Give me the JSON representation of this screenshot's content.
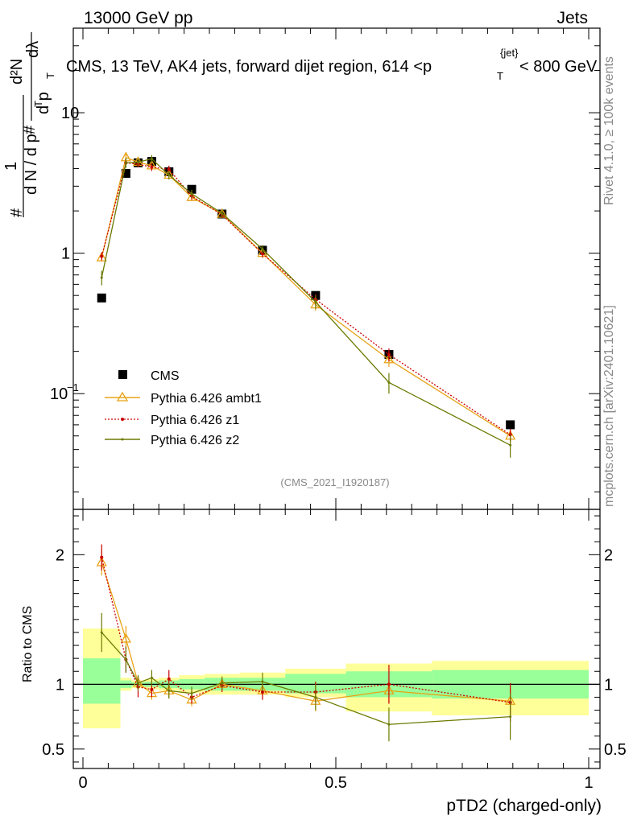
{
  "header": {
    "left": "13000 GeV pp",
    "right": "Jets",
    "title_main": "CMS, 13 TeV, AK4 jets, forward dijet region, 614 <p",
    "title_sub": "T",
    "title_sup": "{jet}",
    "title_end": "< 800 GeV"
  },
  "side_labels": {
    "rivet": "Rivet 4.1.0, ≥ 100k events",
    "mcplots": "mcplots.cern.ch [arXiv:2401.10621]"
  },
  "watermark": "(CMS_2021_I1920187)",
  "colors": {
    "cms": "#000000",
    "ambt1": "#e8a317",
    "z1": "#cc0000",
    "z2": "#6b7a00",
    "band_outer": "#ffff99",
    "band_inner": "#99ff99"
  },
  "chart_data": [
    {
      "type": "scatter",
      "title": "CMS, 13 TeV, AK4 jets, forward dijet region, 614 < pT{jet} < 800 GeV",
      "xlabel": "pTD2 (charged-only)",
      "ylabel_parts": {
        "hash1": "#",
        "one": "1",
        "den": "d N / d p",
        "sub": "T",
        "hash2": "#",
        "d2n": "d²N",
        "dpt": "d p",
        "dl": "dλ"
      },
      "yscale": "log",
      "ylim": [
        0.015,
        40
      ],
      "xlim": [
        -0.02,
        1.03
      ],
      "yticks_major": [
        {
          "value": 0.1,
          "label": "10",
          "sup": "−1"
        },
        {
          "value": 1,
          "label": "1",
          "sup": ""
        },
        {
          "value": 10,
          "label": "10",
          "sup": ""
        }
      ],
      "bin_edges": [
        0.0,
        0.074,
        0.096,
        0.122,
        0.15,
        0.19,
        0.24,
        0.31,
        0.4,
        0.52,
        0.69,
        1.0
      ],
      "bin_centers": [
        0.037,
        0.085,
        0.109,
        0.136,
        0.17,
        0.215,
        0.275,
        0.355,
        0.46,
        0.605,
        0.845
      ],
      "series": [
        {
          "name": "CMS",
          "marker": "square",
          "values": [
            0.48,
            3.7,
            4.4,
            4.5,
            3.8,
            2.85,
            1.9,
            1.05,
            0.5,
            0.19,
            0.06
          ],
          "errors": [
            0.02,
            0.1,
            0.1,
            0.1,
            0.08,
            0.06,
            0.04,
            0.02,
            0.015,
            0.01,
            0.004
          ]
        },
        {
          "name": "Pythia 6.426 ambt1",
          "marker": "triangle",
          "values": [
            0.93,
            4.8,
            4.45,
            4.2,
            3.6,
            2.5,
            1.9,
            1.0,
            0.43,
            0.175,
            0.05
          ],
          "errors": [
            0.06,
            0.35,
            0.2,
            0.25,
            0.25,
            0.15,
            0.1,
            0.06,
            0.04,
            0.02,
            0.005
          ]
        },
        {
          "name": "Pythia 6.426 z1",
          "marker": "dot",
          "values": [
            0.95,
            4.4,
            4.3,
            4.1,
            3.95,
            2.55,
            1.88,
            0.99,
            0.47,
            0.19,
            0.051
          ],
          "errors": [
            0.06,
            0.3,
            0.2,
            0.25,
            0.25,
            0.15,
            0.1,
            0.06,
            0.04,
            0.02,
            0.005
          ]
        },
        {
          "name": "Pythia 6.426 z2",
          "marker": "smalldot",
          "values": [
            0.67,
            4.4,
            4.45,
            4.7,
            3.6,
            2.65,
            1.92,
            1.07,
            0.45,
            0.12,
            0.043
          ],
          "errors": [
            0.08,
            0.35,
            0.25,
            0.3,
            0.25,
            0.18,
            0.12,
            0.07,
            0.05,
            0.02,
            0.008
          ]
        }
      ],
      "legend_position": "lower-left"
    },
    {
      "type": "line",
      "ylabel": "Ratio to CMS",
      "xlabel": "pTD2 (charged-only)",
      "ylim": [
        0.35,
        2.35
      ],
      "xlim": [
        -0.02,
        1.03
      ],
      "yticks": [
        {
          "value": 0.5,
          "label": "0.5"
        },
        {
          "value": 1,
          "label": "1"
        },
        {
          "value": 2,
          "label": "2"
        }
      ],
      "xticks": [
        {
          "value": 0,
          "label": "0"
        },
        {
          "value": 0.5,
          "label": "0.5"
        },
        {
          "value": 1,
          "label": "1"
        }
      ],
      "band_outer": [
        [
          0.66,
          1.43
        ],
        [
          0.95,
          1.05
        ],
        [
          0.97,
          1.03
        ],
        [
          0.96,
          1.04
        ],
        [
          0.95,
          1.05
        ],
        [
          0.93,
          1.07
        ],
        [
          0.92,
          1.08
        ],
        [
          0.92,
          1.09
        ],
        [
          0.9,
          1.12
        ],
        [
          0.79,
          1.16
        ],
        [
          0.76,
          1.18
        ]
      ],
      "band_inner": [
        [
          0.85,
          1.2
        ],
        [
          0.97,
          1.03
        ],
        [
          0.985,
          1.015
        ],
        [
          0.98,
          1.02
        ],
        [
          0.97,
          1.03
        ],
        [
          0.96,
          1.04
        ],
        [
          0.95,
          1.05
        ],
        [
          0.95,
          1.05
        ],
        [
          0.93,
          1.08
        ],
        [
          0.9,
          1.1
        ],
        [
          0.89,
          1.11
        ]
      ],
      "series": [
        {
          "name": "Pythia 6.426 ambt1",
          "values": [
            1.94,
            1.35,
            1.01,
            0.93,
            0.95,
            0.88,
            1.0,
            0.95,
            0.87,
            0.95,
            0.87
          ],
          "errors": [
            0.1,
            0.1,
            0.05,
            0.05,
            0.06,
            0.05,
            0.05,
            0.06,
            0.08,
            0.1,
            0.1
          ]
        },
        {
          "name": "Pythia 6.426 z1",
          "values": [
            1.98,
            1.19,
            0.98,
            0.96,
            1.04,
            0.9,
            0.99,
            0.94,
            0.94,
            1.0,
            0.86
          ],
          "errors": [
            0.1,
            0.1,
            0.08,
            0.06,
            0.07,
            0.05,
            0.05,
            0.06,
            0.08,
            0.15,
            0.15
          ]
        },
        {
          "name": "Pythia 6.426 z2",
          "values": [
            1.4,
            1.19,
            1.01,
            1.05,
            0.95,
            0.93,
            1.01,
            1.02,
            0.9,
            0.69,
            0.75
          ],
          "errors": [
            0.15,
            0.1,
            0.06,
            0.06,
            0.06,
            0.05,
            0.05,
            0.07,
            0.1,
            0.13,
            0.18
          ]
        }
      ]
    }
  ]
}
